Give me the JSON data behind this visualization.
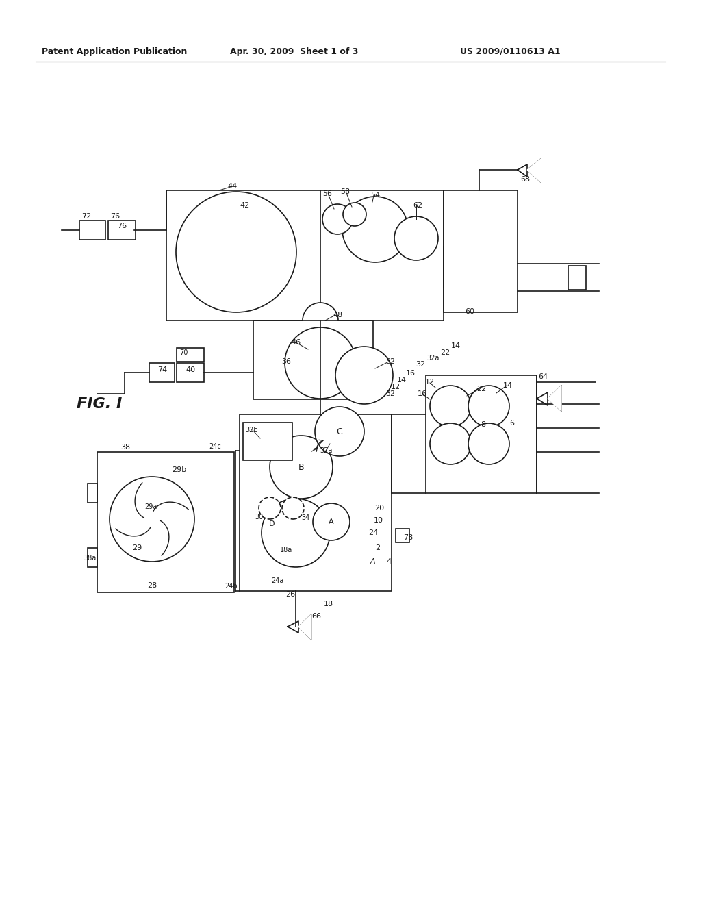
{
  "bg": "#ffffff",
  "lc": "#1a1a1a",
  "lw": 1.2,
  "header_left": "Patent Application Publication",
  "header_mid": "Apr. 30, 2009  Sheet 1 of 3",
  "header_right": "US 2009/0110613 A1",
  "fig_label": "FIG. I"
}
